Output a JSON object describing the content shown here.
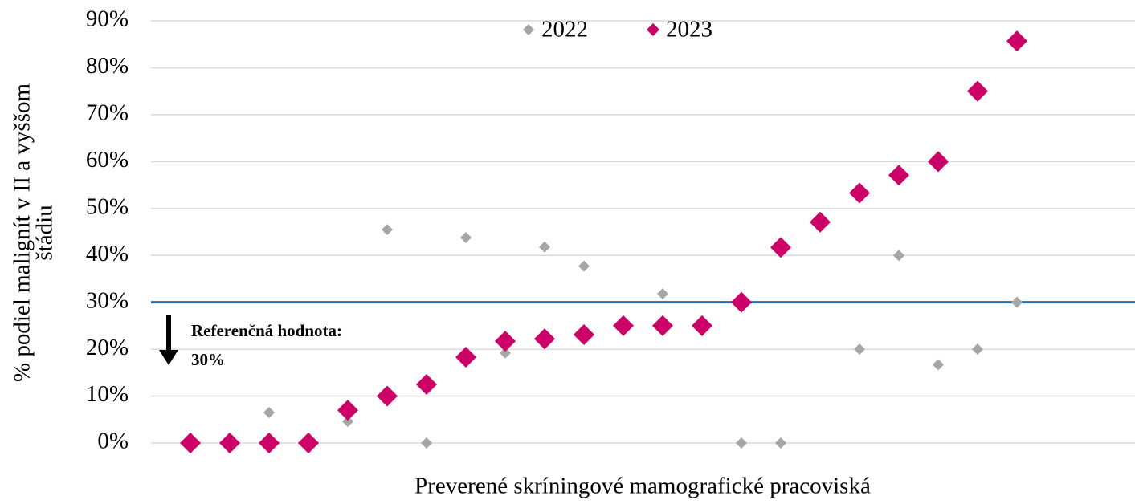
{
  "chart_data": {
    "type": "scatter",
    "x_label": "Preverené skríningové mamografické pracoviská",
    "y_label": [
      "% podiel malignít v II a vyššom",
      "štádiu"
    ],
    "categories": [
      null,
      null,
      null,
      null,
      null,
      null,
      null,
      null,
      null,
      null,
      null,
      null,
      null,
      null,
      null,
      null,
      null,
      null,
      null,
      null,
      null,
      null
    ],
    "series": [
      {
        "name": "2022",
        "color": "#a6a6a6",
        "values": [
          null,
          null,
          6.5,
          null,
          4.6,
          45.5,
          0,
          43.8,
          19.2,
          41.8,
          37.7,
          null,
          31.8,
          null,
          0,
          0,
          null,
          20,
          40,
          16.7,
          20,
          30
        ]
      },
      {
        "name": "2023",
        "color": "#cc0066",
        "values": [
          0,
          0,
          0,
          0,
          7,
          10,
          12.5,
          18.3,
          21.7,
          22.2,
          23.1,
          25,
          25,
          25,
          30,
          41.7,
          47.1,
          53.3,
          57.1,
          60,
          75,
          85.7
        ]
      }
    ],
    "ylim": [
      0,
      90
    ],
    "yticks": [
      {
        "value": 0,
        "label": "0%"
      },
      {
        "value": 10,
        "label": "10%"
      },
      {
        "value": 20,
        "label": "20%"
      },
      {
        "value": 30,
        "label": "30%"
      },
      {
        "value": 40,
        "label": "40%"
      },
      {
        "value": 50,
        "label": "50%"
      },
      {
        "value": 60,
        "label": "60%"
      },
      {
        "value": 70,
        "label": "70%"
      },
      {
        "value": 80,
        "label": "80%"
      },
      {
        "value": 90,
        "label": "90%"
      }
    ],
    "grid": true,
    "legend": "top",
    "reference_line": {
      "value": 30,
      "color": "#1f6fb4",
      "label": [
        "Referenčná hodnota:",
        "30%"
      ]
    }
  }
}
